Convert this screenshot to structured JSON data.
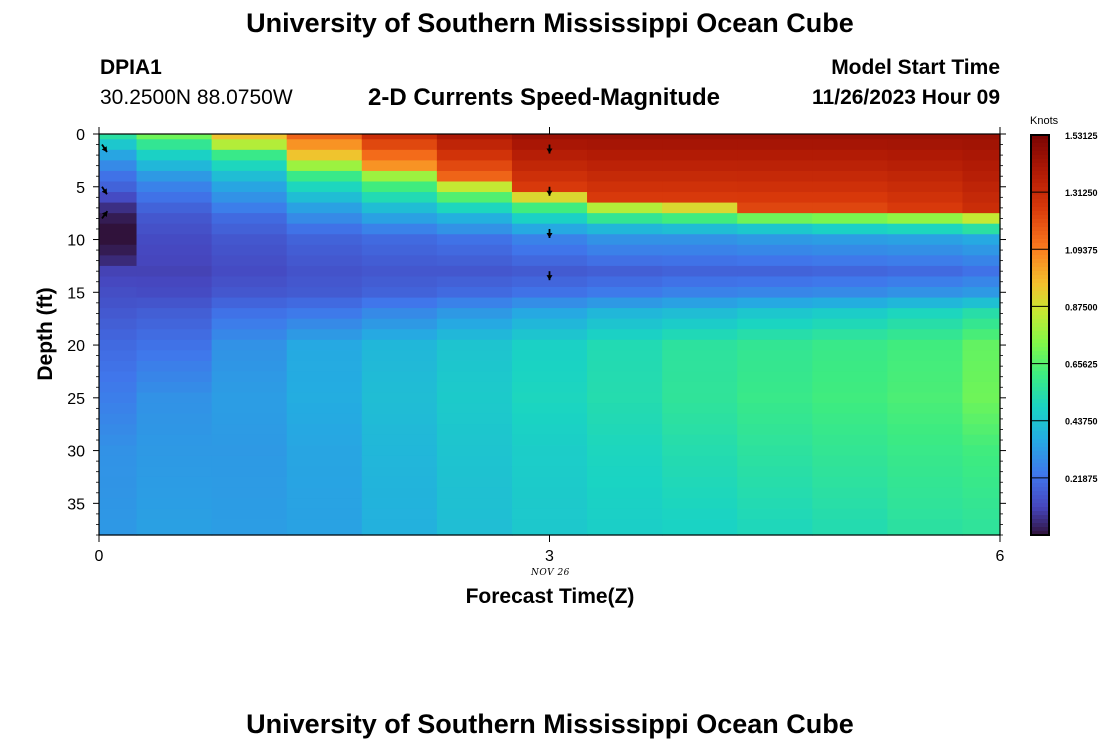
{
  "header": {
    "title": "University of Southern Mississippi Ocean Cube",
    "station_id": "DPIA1",
    "station_coords": "30.2500N  88.0750W",
    "plot_title": "2-D Currents Speed-Magnitude",
    "model_start_label": "Model Start Time",
    "model_start_value": "11/26/2023 Hour 09"
  },
  "footer": {
    "title": "University of Southern Mississippi Ocean Cube"
  },
  "colorbar": {
    "unit_label": "Knots",
    "tick_labels": [
      "1.53125",
      "1.31250",
      "1.09375",
      "0.87500",
      "0.65625",
      "0.43750",
      "0.21875"
    ],
    "tick_values": [
      1.53125,
      1.3125,
      1.09375,
      0.875,
      0.65625,
      0.4375,
      0.21875
    ],
    "min": 0.0,
    "max": 1.53125
  },
  "chart_data": {
    "type": "heatmap",
    "title": "2-D Currents Speed-Magnitude",
    "xlabel": "Forecast Time(Z)",
    "ylabel": "Depth (ft)",
    "x_date_label": "NOV 26",
    "x_ticks": [
      "0",
      "3",
      "6"
    ],
    "x_tick_values": [
      0,
      3,
      6
    ],
    "y_ticks": [
      "0",
      "5",
      "10",
      "15",
      "20",
      "25",
      "30",
      "35"
    ],
    "y_tick_values": [
      0,
      5,
      10,
      15,
      20,
      25,
      30,
      35
    ],
    "xlim": [
      0,
      6
    ],
    "ylim": [
      38,
      0
    ],
    "column_times": [
      0,
      0.5,
      1,
      1.5,
      2,
      2.5,
      3,
      3.5,
      4,
      4.5,
      5,
      5.5,
      6
    ],
    "depth_levels": [
      0,
      1,
      2,
      3,
      4,
      5,
      6,
      7,
      8,
      9,
      10,
      11,
      12,
      13,
      14,
      15,
      16,
      17,
      18,
      19,
      20,
      21,
      22,
      23,
      24,
      25,
      26,
      27,
      28,
      29,
      30,
      31,
      32,
      33,
      34,
      35,
      36,
      37
    ],
    "speed_profiles_knots": [
      {
        "time": 0.0,
        "depths": [
          0,
          1,
          2,
          3,
          4,
          5,
          6,
          7,
          8,
          9,
          10,
          11,
          12,
          13,
          16,
          20,
          25,
          30,
          38
        ],
        "speeds": [
          0.55,
          0.45,
          0.35,
          0.28,
          0.22,
          0.18,
          0.12,
          0.06,
          0.02,
          0.0,
          0.0,
          0.02,
          0.05,
          0.1,
          0.14,
          0.2,
          0.25,
          0.3,
          0.32
        ]
      },
      {
        "time": 0.5,
        "depths": [
          0,
          1,
          2,
          3,
          4,
          5,
          6,
          7,
          8,
          10,
          13,
          15,
          17,
          20,
          25,
          30,
          38
        ],
        "speeds": [
          0.7,
          0.58,
          0.48,
          0.4,
          0.32,
          0.26,
          0.22,
          0.18,
          0.15,
          0.12,
          0.1,
          0.12,
          0.17,
          0.22,
          0.3,
          0.32,
          0.34
        ]
      },
      {
        "time": 1.0,
        "depths": [
          0,
          1,
          2,
          3,
          4,
          5,
          6,
          7,
          8,
          10,
          13,
          15,
          17,
          20,
          25,
          30,
          38
        ],
        "speeds": [
          0.95,
          0.82,
          0.6,
          0.5,
          0.42,
          0.35,
          0.3,
          0.25,
          0.2,
          0.15,
          0.12,
          0.15,
          0.22,
          0.3,
          0.33,
          0.32,
          0.33
        ]
      },
      {
        "time": 1.5,
        "depths": [
          0,
          2,
          3,
          4,
          5,
          6,
          7,
          8,
          9,
          10,
          13,
          15,
          17,
          20,
          25,
          30,
          38
        ],
        "speeds": [
          1.15,
          0.95,
          0.78,
          0.6,
          0.5,
          0.42,
          0.34,
          0.28,
          0.22,
          0.18,
          0.14,
          0.16,
          0.24,
          0.36,
          0.37,
          0.35,
          0.34
        ]
      },
      {
        "time": 2.0,
        "depths": [
          0,
          3,
          4,
          5,
          6,
          7,
          8,
          9,
          10,
          13,
          15,
          17,
          20,
          25,
          30,
          38
        ],
        "speeds": [
          1.3,
          1.05,
          0.78,
          0.62,
          0.52,
          0.42,
          0.34,
          0.26,
          0.2,
          0.15,
          0.18,
          0.28,
          0.4,
          0.42,
          0.4,
          0.38
        ]
      },
      {
        "time": 2.5,
        "depths": [
          0,
          4,
          5,
          6,
          7,
          8,
          9,
          10,
          13,
          15,
          17,
          20,
          25,
          30,
          38
        ],
        "speeds": [
          1.4,
          1.15,
          0.85,
          0.65,
          0.5,
          0.38,
          0.3,
          0.22,
          0.15,
          0.2,
          0.32,
          0.44,
          0.46,
          0.44,
          0.42
        ]
      },
      {
        "time": 3.0,
        "depths": [
          0,
          5,
          6,
          7,
          8,
          9,
          10,
          13,
          15,
          17,
          20,
          25,
          30,
          38
        ],
        "speeds": [
          1.45,
          1.25,
          0.9,
          0.62,
          0.48,
          0.36,
          0.26,
          0.16,
          0.22,
          0.36,
          0.48,
          0.5,
          0.47,
          0.45
        ]
      },
      {
        "time": 3.5,
        "depths": [
          0,
          6,
          7,
          8,
          9,
          10,
          13,
          15,
          17,
          20,
          25,
          30,
          38
        ],
        "speeds": [
          1.45,
          1.25,
          0.82,
          0.58,
          0.4,
          0.3,
          0.17,
          0.24,
          0.4,
          0.52,
          0.53,
          0.5,
          0.47
        ]
      },
      {
        "time": 4.0,
        "depths": [
          0,
          6,
          7,
          8,
          9,
          10,
          13,
          15,
          17,
          20,
          25,
          30,
          38
        ],
        "speeds": [
          1.45,
          1.25,
          0.9,
          0.62,
          0.42,
          0.3,
          0.18,
          0.26,
          0.42,
          0.56,
          0.57,
          0.53,
          0.48
        ]
      },
      {
        "time": 4.5,
        "depths": [
          0,
          7,
          8,
          9,
          10,
          13,
          15,
          17,
          20,
          25,
          30,
          38
        ],
        "speeds": [
          1.45,
          1.22,
          0.7,
          0.45,
          0.32,
          0.18,
          0.27,
          0.45,
          0.58,
          0.6,
          0.56,
          0.5
        ]
      },
      {
        "time": 5.0,
        "depths": [
          0,
          7,
          8,
          9,
          10,
          13,
          15,
          17,
          20,
          25,
          30,
          38
        ],
        "speeds": [
          1.45,
          1.22,
          0.72,
          0.48,
          0.33,
          0.19,
          0.28,
          0.47,
          0.6,
          0.62,
          0.58,
          0.52
        ]
      },
      {
        "time": 5.5,
        "depths": [
          0,
          7,
          8,
          9,
          10,
          13,
          15,
          17,
          20,
          25,
          30,
          38
        ],
        "speeds": [
          1.45,
          1.25,
          0.76,
          0.5,
          0.34,
          0.2,
          0.3,
          0.5,
          0.62,
          0.64,
          0.6,
          0.55
        ]
      },
      {
        "time": 6.0,
        "depths": [
          0,
          7,
          8,
          9,
          10,
          13,
          15,
          17,
          20,
          25,
          30,
          38
        ],
        "speeds": [
          1.45,
          1.3,
          0.85,
          0.55,
          0.36,
          0.22,
          0.32,
          0.54,
          0.68,
          0.7,
          0.62,
          0.56
        ]
      }
    ],
    "vectors": [
      {
        "time": 0.0,
        "depth": 1,
        "direction": "down-right"
      },
      {
        "time": 0.0,
        "depth": 5,
        "direction": "down-right"
      },
      {
        "time": 0.0,
        "depth": 8,
        "direction": "up-right"
      },
      {
        "time": 3.0,
        "depth": 1,
        "direction": "down"
      },
      {
        "time": 3.0,
        "depth": 5,
        "direction": "down"
      },
      {
        "time": 3.0,
        "depth": 9,
        "direction": "down"
      },
      {
        "time": 3.0,
        "depth": 13,
        "direction": "down"
      }
    ]
  }
}
